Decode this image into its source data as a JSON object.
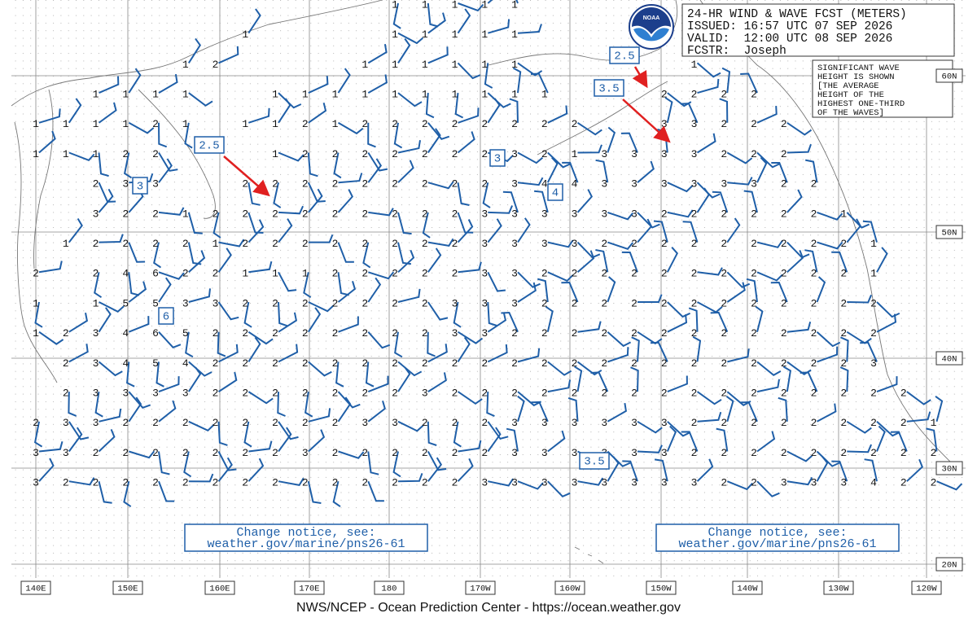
{
  "header": {
    "lines": [
      "24-HR WIND & WAVE FCST (METERS)",
      "ISSUED: 16:57 UTC 07 SEP 2026",
      "VALID:  12:00 UTC 08 SEP 2026",
      "FCSTR:  Joseph"
    ]
  },
  "legend": {
    "lines": [
      "SIGNIFICANT WAVE",
      "HEIGHT IS SHOWN",
      "[THE AVERAGE",
      "HEIGHT OF THE",
      "HIGHEST ONE-THIRD",
      "OF THE WAVES]"
    ]
  },
  "logo": "NOAA",
  "notices": [
    {
      "lines": [
        "Change notice, see:",
        "weather.gov/marine/pns26-61"
      ]
    },
    {
      "lines": [
        "Change notice, see:",
        "weather.gov/marine/pns26-61"
      ]
    }
  ],
  "footer": "NWS/NCEP - Ocean Prediction Center - https://ocean.weather.gov",
  "longitude_labels": [
    "140E",
    "150E",
    "160E",
    "170E",
    "180",
    "170W",
    "160W",
    "150W",
    "140W",
    "130W",
    "120W"
  ],
  "latitude_labels": [
    "60N",
    "50N",
    "40N",
    "30N",
    "20N"
  ],
  "callouts": [
    "2.5",
    "2.5",
    "3.5",
    "3",
    "3",
    "4",
    "6",
    "3.5"
  ],
  "wave_heights": {
    "rows": [
      [
        null,
        null,
        null,
        null,
        null,
        null,
        null,
        null,
        null,
        null,
        null,
        null,
        1,
        1,
        1,
        1,
        1,
        null,
        null,
        null,
        null,
        null,
        null,
        null,
        null,
        null,
        null,
        null,
        null,
        null,
        null
      ],
      [
        null,
        null,
        null,
        null,
        null,
        null,
        null,
        1,
        null,
        null,
        null,
        null,
        1,
        1,
        1,
        1,
        1,
        null,
        null,
        null,
        null,
        null,
        null,
        null,
        null,
        null,
        null,
        null,
        null,
        null,
        null
      ],
      [
        null,
        null,
        null,
        null,
        null,
        1,
        2,
        null,
        null,
        null,
        null,
        1,
        1,
        1,
        1,
        1,
        1,
        null,
        null,
        null,
        null,
        null,
        1,
        null,
        null,
        null,
        null,
        null,
        null,
        null,
        null
      ],
      [
        null,
        null,
        1,
        1,
        1,
        1,
        null,
        null,
        1,
        1,
        1,
        1,
        1,
        1,
        1,
        1,
        1,
        1,
        null,
        null,
        null,
        2,
        2,
        2,
        2,
        null,
        null,
        null,
        null,
        null,
        null
      ],
      [
        1,
        1,
        1,
        1,
        2,
        1,
        null,
        1,
        1,
        2,
        1,
        2,
        2,
        2,
        2,
        2,
        2,
        2,
        2,
        null,
        null,
        3,
        3,
        2,
        2,
        2,
        null,
        null,
        null,
        null,
        null
      ],
      [
        1,
        1,
        1,
        2,
        2,
        null,
        null,
        null,
        1,
        2,
        2,
        2,
        2,
        2,
        2,
        2,
        3,
        2,
        1,
        3,
        3,
        3,
        3,
        2,
        2,
        2,
        null,
        null,
        null,
        null,
        null
      ],
      [
        null,
        null,
        2,
        3,
        3,
        null,
        null,
        2,
        2,
        2,
        2,
        2,
        2,
        2,
        2,
        2,
        3,
        4,
        4,
        3,
        3,
        3,
        3,
        3,
        3,
        2,
        2,
        null,
        null,
        null,
        null
      ],
      [
        null,
        null,
        3,
        2,
        2,
        1,
        2,
        2,
        2,
        2,
        2,
        2,
        2,
        2,
        2,
        3,
        3,
        3,
        3,
        3,
        3,
        2,
        2,
        2,
        2,
        2,
        2,
        1,
        null,
        null,
        null
      ],
      [
        null,
        1,
        2,
        2,
        2,
        2,
        1,
        2,
        2,
        2,
        2,
        2,
        2,
        2,
        2,
        3,
        3,
        3,
        3,
        2,
        2,
        2,
        2,
        2,
        2,
        2,
        2,
        2,
        1,
        null,
        null
      ],
      [
        2,
        null,
        2,
        4,
        6,
        2,
        2,
        1,
        1,
        1,
        2,
        2,
        2,
        2,
        2,
        3,
        3,
        2,
        2,
        2,
        2,
        2,
        2,
        2,
        2,
        2,
        2,
        2,
        1,
        null,
        null
      ],
      [
        1,
        null,
        1,
        5,
        5,
        3,
        3,
        2,
        2,
        2,
        2,
        2,
        2,
        2,
        3,
        3,
        3,
        2,
        2,
        2,
        2,
        2,
        2,
        2,
        2,
        2,
        2,
        2,
        2,
        null,
        null
      ],
      [
        1,
        2,
        3,
        4,
        6,
        5,
        2,
        2,
        2,
        2,
        2,
        2,
        2,
        2,
        3,
        3,
        2,
        2,
        2,
        2,
        2,
        2,
        2,
        2,
        2,
        2,
        2,
        2,
        2,
        null,
        null
      ],
      [
        null,
        2,
        3,
        4,
        5,
        4,
        2,
        2,
        2,
        2,
        2,
        2,
        2,
        2,
        2,
        2,
        2,
        2,
        2,
        2,
        2,
        2,
        2,
        2,
        2,
        2,
        2,
        2,
        3,
        null,
        null
      ],
      [
        null,
        2,
        3,
        3,
        3,
        3,
        2,
        2,
        2,
        2,
        2,
        2,
        2,
        3,
        2,
        2,
        2,
        2,
        2,
        2,
        2,
        2,
        2,
        2,
        2,
        2,
        2,
        2,
        2,
        2,
        null
      ],
      [
        2,
        3,
        3,
        2,
        2,
        2,
        2,
        2,
        2,
        2,
        2,
        3,
        3,
        2,
        2,
        2,
        3,
        3,
        3,
        3,
        3,
        3,
        2,
        2,
        2,
        2,
        2,
        2,
        2,
        2,
        1
      ],
      [
        3,
        3,
        2,
        2,
        2,
        2,
        2,
        2,
        2,
        3,
        2,
        2,
        2,
        2,
        2,
        2,
        3,
        3,
        3,
        3,
        3,
        3,
        2,
        2,
        2,
        2,
        2,
        2,
        2,
        2,
        2
      ],
      [
        3,
        2,
        2,
        2,
        2,
        2,
        2,
        2,
        2,
        2,
        2,
        2,
        2,
        2,
        2,
        3,
        3,
        3,
        3,
        3,
        3,
        3,
        3,
        2,
        2,
        3,
        3,
        3,
        4,
        2,
        2
      ]
    ]
  }
}
